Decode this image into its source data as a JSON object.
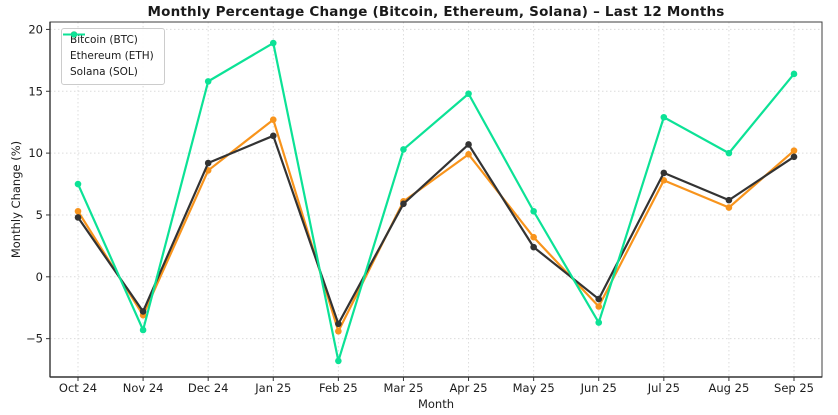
{
  "chart_data": {
    "type": "line",
    "title": "Monthly Percentage Change (Bitcoin, Ethereum, Solana) – Last 12 Months",
    "xlabel": "Month",
    "ylabel": "Monthly Change (%)",
    "categories": [
      "Oct 24",
      "Nov 24",
      "Dec 24",
      "Jan 25",
      "Feb 25",
      "Mar 25",
      "Apr 25",
      "May 25",
      "Jun 25",
      "Jul 25",
      "Aug 25",
      "Sep 25"
    ],
    "y_ticks": [
      -5,
      0,
      5,
      10,
      15,
      20
    ],
    "ylim": [
      -8.1,
      20.6
    ],
    "grid": true,
    "grid_style": "dotted",
    "legend_position": "upper-left",
    "marker": "circle",
    "series": [
      {
        "name": "Bitcoin (BTC)",
        "slug": "bitcoin",
        "color": "#f8941c",
        "values": [
          5.3,
          -3.1,
          8.6,
          12.7,
          -4.4,
          6.1,
          9.9,
          3.2,
          -2.4,
          7.8,
          5.6,
          10.2
        ]
      },
      {
        "name": "Ethereum (ETH)",
        "slug": "ethereum",
        "color": "#333333",
        "values": [
          4.8,
          -2.8,
          9.2,
          11.4,
          -3.8,
          5.9,
          10.7,
          2.4,
          -1.8,
          8.4,
          6.2,
          9.7
        ]
      },
      {
        "name": "Solana (SOL)",
        "slug": "solana",
        "color": "#0ce296",
        "values": [
          7.5,
          -4.3,
          15.8,
          18.9,
          -6.8,
          10.3,
          14.8,
          5.3,
          -3.7,
          12.9,
          10.0,
          16.4
        ]
      }
    ],
    "colors": {
      "grid": "#dcdcdc",
      "spine": "#3f3f3f",
      "tick_label": "#1c1c1c",
      "background": "#ffffff"
    }
  }
}
